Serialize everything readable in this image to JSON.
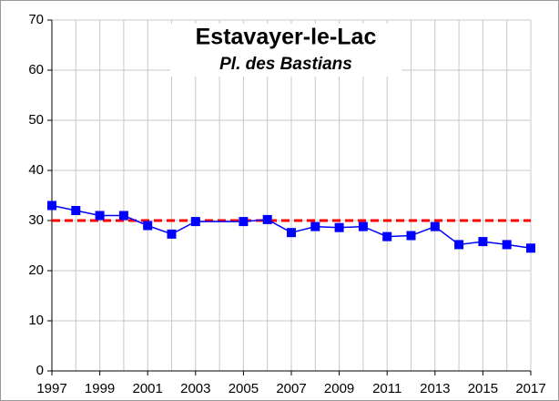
{
  "chart_data": {
    "type": "line",
    "title": "Estavayer-le-Lac",
    "subtitle": "Pl. des Bastians",
    "x": [
      1997,
      1998,
      1999,
      2000,
      2001,
      2002,
      2003,
      2005,
      2006,
      2007,
      2008,
      2009,
      2010,
      2011,
      2012,
      2013,
      2014,
      2015,
      2016,
      2017
    ],
    "series": [
      {
        "name": "Pl. des Bastians",
        "color": "#0000ff",
        "values": [
          33,
          32,
          31,
          31,
          29,
          27.3,
          29.8,
          29.8,
          30.2,
          27.6,
          28.8,
          28.6,
          28.8,
          26.8,
          27,
          28.8,
          25.2,
          25.8,
          25.2,
          24.5
        ]
      }
    ],
    "limit": {
      "value": 30,
      "color": "#ff0000"
    },
    "xlim": [
      1997,
      2017
    ],
    "xticks": [
      1997,
      1999,
      2001,
      2003,
      2005,
      2007,
      2009,
      2011,
      2013,
      2015,
      2017
    ],
    "ylim": [
      0,
      70
    ],
    "yticks": [
      0,
      10,
      20,
      30,
      40,
      50,
      60,
      70
    ],
    "grid": true
  }
}
